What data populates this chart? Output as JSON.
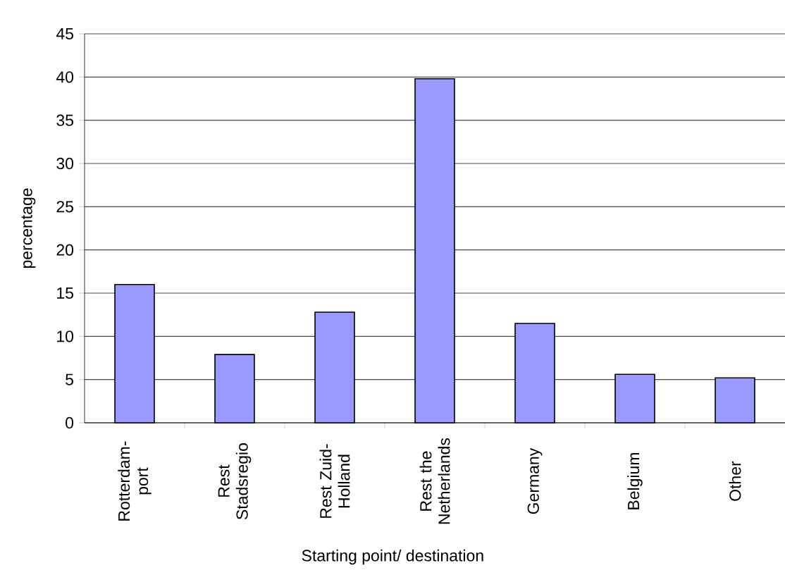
{
  "chart_data": {
    "type": "bar",
    "xlabel": "Starting point/ destination",
    "ylabel": "percentage",
    "categories": [
      "Rotterdam-port",
      "Rest Stadsregio",
      "Rest Zuid-Holland",
      "Rest the Netherlands",
      "Germany",
      "Belgium",
      "Other"
    ],
    "values": [
      16.0,
      7.9,
      12.8,
      39.8,
      11.5,
      5.6,
      5.2
    ],
    "color": "#9999ff",
    "ylim": [
      0,
      45
    ],
    "yticks": [
      0,
      5,
      10,
      15,
      20,
      25,
      30,
      35,
      40,
      45
    ],
    "grid": "y"
  }
}
